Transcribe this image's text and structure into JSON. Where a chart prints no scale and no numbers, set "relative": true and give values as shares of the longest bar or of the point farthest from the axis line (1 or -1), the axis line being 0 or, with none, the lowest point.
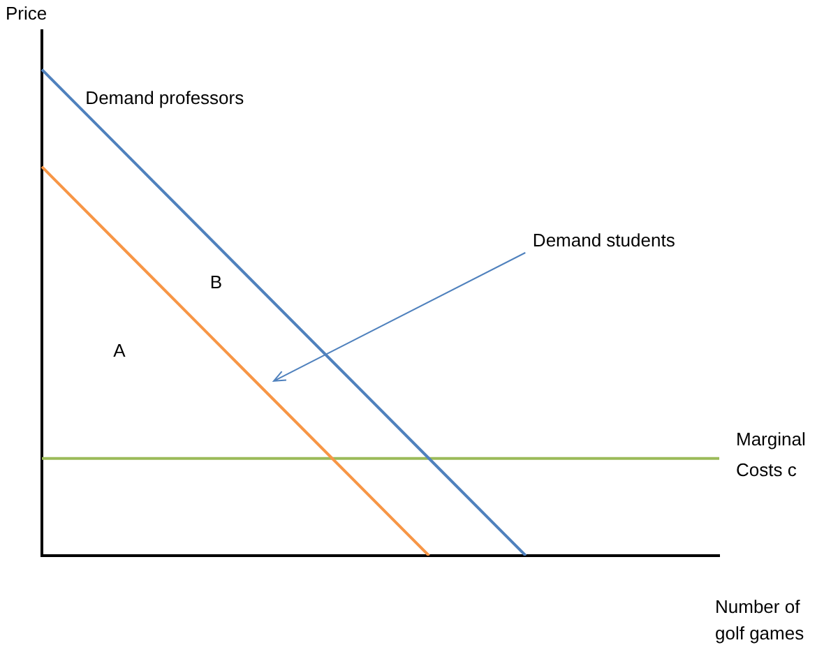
{
  "chart_data": {
    "type": "line",
    "relative": true,
    "ylabel": "Price",
    "xlabel": "Number of golf games",
    "legend": false,
    "grid": false,
    "marker": "none",
    "line_style": "solid",
    "categories": [
      null,
      null,
      null,
      null,
      null,
      null,
      null,
      null
    ],
    "series": [
      {
        "name": "Demand professors",
        "color": "#4f81bd",
        "values": [
          1,
          0.8,
          0.6,
          0.4,
          0.2,
          0,
          null,
          null
        ]
      },
      {
        "name": "Demand students",
        "color": "#f79646",
        "values": [
          0.8,
          0.6,
          0.4,
          0.2,
          0,
          null,
          null,
          null
        ]
      },
      {
        "name": "Marginal Costs c",
        "color": "#9bbb59",
        "values": [
          0.2,
          0.2,
          0.2,
          0.2,
          0.2,
          0.2,
          0.2,
          0.2
        ]
      }
    ],
    "annotations": [
      "A",
      "B"
    ]
  }
}
